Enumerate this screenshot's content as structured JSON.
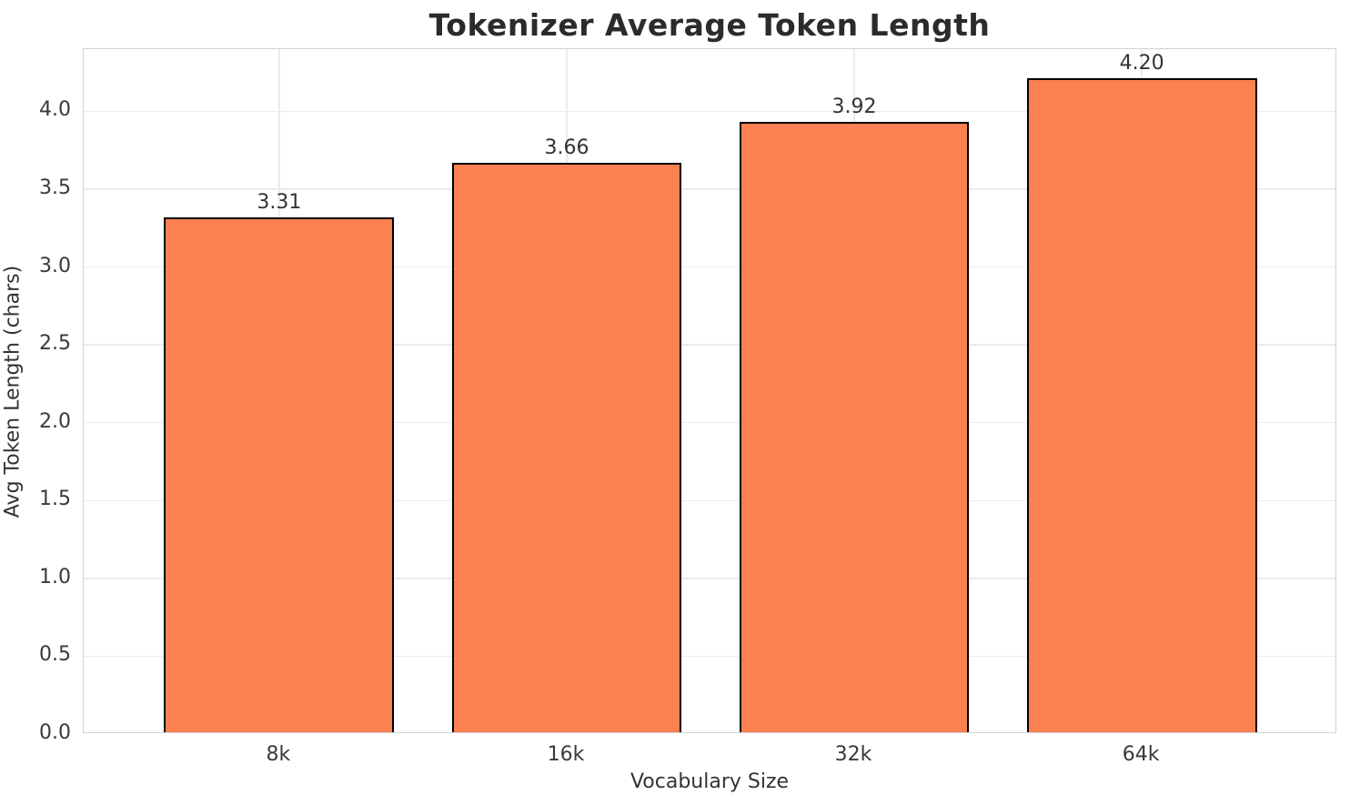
{
  "title": "Tokenizer Average Token Length",
  "chart_data": {
    "type": "bar",
    "title": "Tokenizer Average Token Length",
    "xlabel": "Vocabulary Size",
    "ylabel": "Avg Token Length (chars)",
    "categories": [
      "8k",
      "16k",
      "32k",
      "64k"
    ],
    "values": [
      3.31,
      3.66,
      3.92,
      4.2
    ],
    "value_labels": [
      "3.31",
      "3.66",
      "3.92",
      "4.20"
    ],
    "ylim": [
      0,
      4.4
    ],
    "yticks": [
      0.0,
      0.5,
      1.0,
      1.5,
      2.0,
      2.5,
      3.0,
      3.5,
      4.0
    ],
    "ytick_labels": [
      "0.0",
      "0.5",
      "1.0",
      "1.5",
      "2.0",
      "2.5",
      "3.0",
      "3.5",
      "4.0"
    ],
    "grid": true,
    "legend": "none",
    "colors": {
      "bar_fill": "#FC8052",
      "bar_edge": "#000000",
      "gridline": "#EBEBEB",
      "spine": "#D4D4D4",
      "title_text": "#2B2B2B",
      "tick_text": "#3A3A3A"
    }
  }
}
